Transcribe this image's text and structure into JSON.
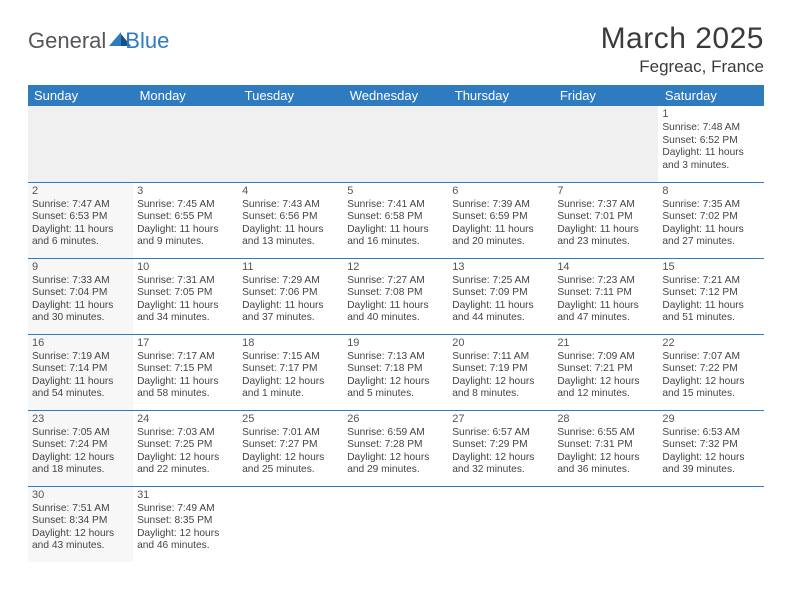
{
  "logo": {
    "word1": "General",
    "word2": "Blue"
  },
  "header": {
    "month_title": "March 2025",
    "location": "Fegreac, France"
  },
  "colors": {
    "header_bg": "#2f7bbf",
    "header_text": "#ffffff",
    "border": "#2f7bbf",
    "alt_bg": "#f0f0f0"
  },
  "day_names": [
    "Sunday",
    "Monday",
    "Tuesday",
    "Wednesday",
    "Thursday",
    "Friday",
    "Saturday"
  ],
  "weeks": [
    [
      null,
      null,
      null,
      null,
      null,
      null,
      {
        "n": "1",
        "sr": "Sunrise: 7:48 AM",
        "ss": "Sunset: 6:52 PM",
        "dl1": "Daylight: 11 hours",
        "dl2": "and 3 minutes."
      }
    ],
    [
      {
        "n": "2",
        "sr": "Sunrise: 7:47 AM",
        "ss": "Sunset: 6:53 PM",
        "dl1": "Daylight: 11 hours",
        "dl2": "and 6 minutes."
      },
      {
        "n": "3",
        "sr": "Sunrise: 7:45 AM",
        "ss": "Sunset: 6:55 PM",
        "dl1": "Daylight: 11 hours",
        "dl2": "and 9 minutes."
      },
      {
        "n": "4",
        "sr": "Sunrise: 7:43 AM",
        "ss": "Sunset: 6:56 PM",
        "dl1": "Daylight: 11 hours",
        "dl2": "and 13 minutes."
      },
      {
        "n": "5",
        "sr": "Sunrise: 7:41 AM",
        "ss": "Sunset: 6:58 PM",
        "dl1": "Daylight: 11 hours",
        "dl2": "and 16 minutes."
      },
      {
        "n": "6",
        "sr": "Sunrise: 7:39 AM",
        "ss": "Sunset: 6:59 PM",
        "dl1": "Daylight: 11 hours",
        "dl2": "and 20 minutes."
      },
      {
        "n": "7",
        "sr": "Sunrise: 7:37 AM",
        "ss": "Sunset: 7:01 PM",
        "dl1": "Daylight: 11 hours",
        "dl2": "and 23 minutes."
      },
      {
        "n": "8",
        "sr": "Sunrise: 7:35 AM",
        "ss": "Sunset: 7:02 PM",
        "dl1": "Daylight: 11 hours",
        "dl2": "and 27 minutes."
      }
    ],
    [
      {
        "n": "9",
        "sr": "Sunrise: 7:33 AM",
        "ss": "Sunset: 7:04 PM",
        "dl1": "Daylight: 11 hours",
        "dl2": "and 30 minutes."
      },
      {
        "n": "10",
        "sr": "Sunrise: 7:31 AM",
        "ss": "Sunset: 7:05 PM",
        "dl1": "Daylight: 11 hours",
        "dl2": "and 34 minutes."
      },
      {
        "n": "11",
        "sr": "Sunrise: 7:29 AM",
        "ss": "Sunset: 7:06 PM",
        "dl1": "Daylight: 11 hours",
        "dl2": "and 37 minutes."
      },
      {
        "n": "12",
        "sr": "Sunrise: 7:27 AM",
        "ss": "Sunset: 7:08 PM",
        "dl1": "Daylight: 11 hours",
        "dl2": "and 40 minutes."
      },
      {
        "n": "13",
        "sr": "Sunrise: 7:25 AM",
        "ss": "Sunset: 7:09 PM",
        "dl1": "Daylight: 11 hours",
        "dl2": "and 44 minutes."
      },
      {
        "n": "14",
        "sr": "Sunrise: 7:23 AM",
        "ss": "Sunset: 7:11 PM",
        "dl1": "Daylight: 11 hours",
        "dl2": "and 47 minutes."
      },
      {
        "n": "15",
        "sr": "Sunrise: 7:21 AM",
        "ss": "Sunset: 7:12 PM",
        "dl1": "Daylight: 11 hours",
        "dl2": "and 51 minutes."
      }
    ],
    [
      {
        "n": "16",
        "sr": "Sunrise: 7:19 AM",
        "ss": "Sunset: 7:14 PM",
        "dl1": "Daylight: 11 hours",
        "dl2": "and 54 minutes."
      },
      {
        "n": "17",
        "sr": "Sunrise: 7:17 AM",
        "ss": "Sunset: 7:15 PM",
        "dl1": "Daylight: 11 hours",
        "dl2": "and 58 minutes."
      },
      {
        "n": "18",
        "sr": "Sunrise: 7:15 AM",
        "ss": "Sunset: 7:17 PM",
        "dl1": "Daylight: 12 hours",
        "dl2": "and 1 minute."
      },
      {
        "n": "19",
        "sr": "Sunrise: 7:13 AM",
        "ss": "Sunset: 7:18 PM",
        "dl1": "Daylight: 12 hours",
        "dl2": "and 5 minutes."
      },
      {
        "n": "20",
        "sr": "Sunrise: 7:11 AM",
        "ss": "Sunset: 7:19 PM",
        "dl1": "Daylight: 12 hours",
        "dl2": "and 8 minutes."
      },
      {
        "n": "21",
        "sr": "Sunrise: 7:09 AM",
        "ss": "Sunset: 7:21 PM",
        "dl1": "Daylight: 12 hours",
        "dl2": "and 12 minutes."
      },
      {
        "n": "22",
        "sr": "Sunrise: 7:07 AM",
        "ss": "Sunset: 7:22 PM",
        "dl1": "Daylight: 12 hours",
        "dl2": "and 15 minutes."
      }
    ],
    [
      {
        "n": "23",
        "sr": "Sunrise: 7:05 AM",
        "ss": "Sunset: 7:24 PM",
        "dl1": "Daylight: 12 hours",
        "dl2": "and 18 minutes."
      },
      {
        "n": "24",
        "sr": "Sunrise: 7:03 AM",
        "ss": "Sunset: 7:25 PM",
        "dl1": "Daylight: 12 hours",
        "dl2": "and 22 minutes."
      },
      {
        "n": "25",
        "sr": "Sunrise: 7:01 AM",
        "ss": "Sunset: 7:27 PM",
        "dl1": "Daylight: 12 hours",
        "dl2": "and 25 minutes."
      },
      {
        "n": "26",
        "sr": "Sunrise: 6:59 AM",
        "ss": "Sunset: 7:28 PM",
        "dl1": "Daylight: 12 hours",
        "dl2": "and 29 minutes."
      },
      {
        "n": "27",
        "sr": "Sunrise: 6:57 AM",
        "ss": "Sunset: 7:29 PM",
        "dl1": "Daylight: 12 hours",
        "dl2": "and 32 minutes."
      },
      {
        "n": "28",
        "sr": "Sunrise: 6:55 AM",
        "ss": "Sunset: 7:31 PM",
        "dl1": "Daylight: 12 hours",
        "dl2": "and 36 minutes."
      },
      {
        "n": "29",
        "sr": "Sunrise: 6:53 AM",
        "ss": "Sunset: 7:32 PM",
        "dl1": "Daylight: 12 hours",
        "dl2": "and 39 minutes."
      }
    ],
    [
      {
        "n": "30",
        "sr": "Sunrise: 7:51 AM",
        "ss": "Sunset: 8:34 PM",
        "dl1": "Daylight: 12 hours",
        "dl2": "and 43 minutes."
      },
      {
        "n": "31",
        "sr": "Sunrise: 7:49 AM",
        "ss": "Sunset: 8:35 PM",
        "dl1": "Daylight: 12 hours",
        "dl2": "and 46 minutes."
      },
      null,
      null,
      null,
      null,
      null
    ]
  ]
}
